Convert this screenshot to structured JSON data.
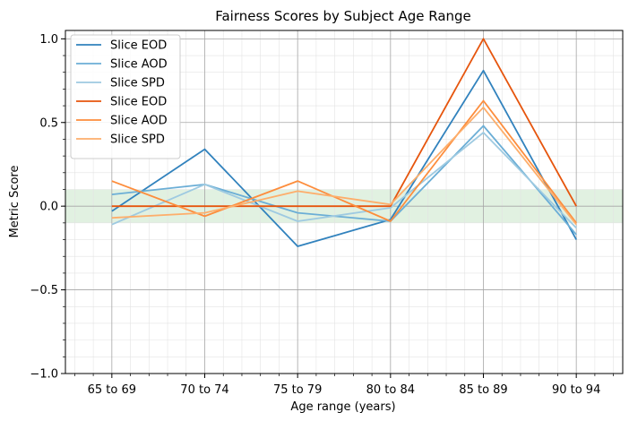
{
  "chart_data": {
    "type": "line",
    "title": "Fairness Scores by Subject Age Range",
    "xlabel": "Age range (years)",
    "ylabel": "Metric Score",
    "categories": [
      "65 to 69",
      "70 to 74",
      "75 to 79",
      "80 to 84",
      "85 to 89",
      "90 to 94"
    ],
    "ylim": [
      -1.0,
      1.05
    ],
    "xlim": [
      -0.5,
      5.5
    ],
    "yticks": [
      -1.0,
      -0.5,
      0.0,
      0.5,
      1.0
    ],
    "ytick_labels": [
      "−1.0",
      "−0.5",
      "0.0",
      "0.5",
      "1.0"
    ],
    "grid": true,
    "minor_grid": true,
    "legend_position": "top-left",
    "fairness_band": [
      -0.1,
      0.1
    ],
    "fairness_band_color": "#c8e6c9",
    "series": [
      {
        "name": "Slice EOD",
        "color": "#3182bd",
        "values": [
          -0.03,
          0.34,
          -0.24,
          -0.08,
          0.81,
          -0.2
        ]
      },
      {
        "name": "Slice AOD",
        "color": "#6baed6",
        "values": [
          0.07,
          0.13,
          -0.04,
          -0.09,
          0.48,
          -0.17
        ]
      },
      {
        "name": "Slice SPD",
        "color": "#9ecae1",
        "values": [
          -0.11,
          0.13,
          -0.09,
          -0.01,
          0.44,
          -0.13
        ]
      },
      {
        "name": "Slice EOD",
        "color": "#e6550d",
        "values": [
          0.0,
          0.0,
          0.0,
          0.0,
          1.0,
          0.0
        ]
      },
      {
        "name": "Slice AOD",
        "color": "#fd8d3c",
        "values": [
          0.15,
          -0.06,
          0.15,
          -0.09,
          0.63,
          -0.1
        ]
      },
      {
        "name": "Slice SPD",
        "color": "#fdae6b",
        "values": [
          -0.07,
          -0.04,
          0.09,
          0.01,
          0.59,
          -0.11
        ]
      }
    ]
  }
}
